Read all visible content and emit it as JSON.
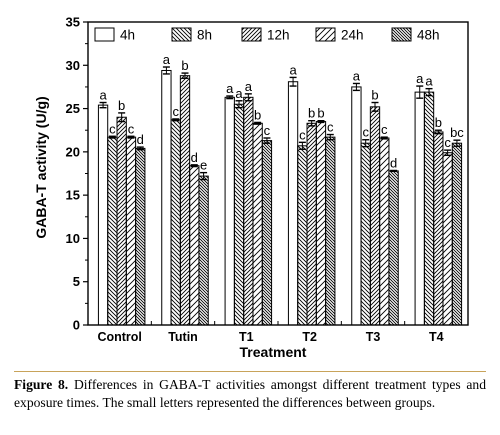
{
  "chart_data": {
    "type": "bar",
    "ylabel": "GABA-T activity (U/g)",
    "xlabel": "Treatment",
    "ylim": [
      0,
      35
    ],
    "yticks": [
      0,
      5,
      10,
      15,
      20,
      25,
      30,
      35
    ],
    "legend_position": "top",
    "categories": [
      "Control",
      "Tutin",
      "T1",
      "T2",
      "T3",
      "T4"
    ],
    "series": [
      {
        "name": "4h",
        "pattern": "open",
        "values": [
          25.4,
          29.4,
          26.3,
          28.1,
          27.5,
          26.9
        ],
        "errors": [
          0.3,
          0.4,
          0.15,
          0.5,
          0.4,
          0.7
        ],
        "labels": [
          "a",
          "a",
          "a",
          "a",
          "a",
          "a"
        ]
      },
      {
        "name": "8h",
        "pattern": "diag-back",
        "values": [
          21.7,
          23.7,
          25.5,
          20.7,
          21.0,
          26.9
        ],
        "errors": [
          0.1,
          0.1,
          0.4,
          0.4,
          0.4,
          0.4
        ],
        "labels": [
          "c",
          "c",
          "a",
          "c",
          "c",
          "a"
        ]
      },
      {
        "name": "12h",
        "pattern": "diag-fwd",
        "values": [
          24.0,
          28.8,
          26.3,
          23.3,
          25.2,
          22.3
        ],
        "errors": [
          0.5,
          0.3,
          0.4,
          0.3,
          0.5,
          0.2
        ],
        "labels": [
          "b",
          "b",
          "a",
          "b",
          "b",
          "b"
        ]
      },
      {
        "name": "24h",
        "pattern": "diag-fwd-sparse",
        "values": [
          21.7,
          18.4,
          23.3,
          23.5,
          21.6,
          19.9
        ],
        "errors": [
          0.1,
          0.1,
          0.1,
          0.1,
          0.1,
          0.3
        ],
        "labels": [
          "c",
          "d",
          "b",
          "b",
          "c",
          "c"
        ]
      },
      {
        "name": "48h",
        "pattern": "diag-back-dense",
        "values": [
          20.4,
          17.2,
          21.3,
          21.7,
          17.8,
          21.0
        ],
        "errors": [
          0.15,
          0.4,
          0.3,
          0.3,
          0.05,
          0.35
        ],
        "labels": [
          "d",
          "e",
          "c",
          "c",
          "d",
          "bc"
        ]
      }
    ]
  },
  "caption": {
    "label": "Figure 8.",
    "text": " Differences in GABA-T activities amongst different treatment types and exposure times. The small letters represented the differences between groups."
  }
}
